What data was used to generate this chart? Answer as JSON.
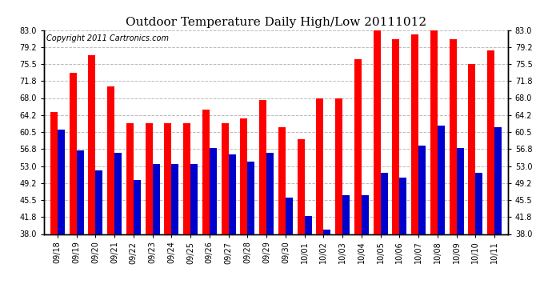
{
  "title": "Outdoor Temperature Daily High/Low 20111012",
  "copyright": "Copyright 2011 Cartronics.com",
  "dates": [
    "09/18",
    "09/19",
    "09/20",
    "09/21",
    "09/22",
    "09/23",
    "09/24",
    "09/25",
    "09/26",
    "09/27",
    "09/28",
    "09/29",
    "09/30",
    "10/01",
    "10/02",
    "10/03",
    "10/04",
    "10/05",
    "10/06",
    "10/07",
    "10/08",
    "10/09",
    "10/10",
    "10/11"
  ],
  "highs": [
    65.0,
    73.5,
    77.5,
    70.5,
    62.5,
    62.5,
    62.5,
    62.5,
    65.5,
    62.5,
    63.5,
    67.5,
    61.5,
    59.0,
    68.0,
    68.0,
    76.5,
    83.0,
    81.0,
    82.0,
    83.0,
    81.0,
    75.5,
    78.5
  ],
  "lows": [
    61.0,
    56.5,
    52.0,
    56.0,
    50.0,
    53.5,
    53.5,
    53.5,
    57.0,
    55.5,
    54.0,
    56.0,
    46.0,
    42.0,
    39.0,
    46.5,
    46.5,
    51.5,
    50.5,
    57.5,
    62.0,
    57.0,
    51.5,
    61.5
  ],
  "high_color": "#ff0000",
  "low_color": "#0000cc",
  "background_color": "#ffffff",
  "plot_background": "#ffffff",
  "yticks": [
    38.0,
    41.8,
    45.5,
    49.2,
    53.0,
    56.8,
    60.5,
    64.2,
    68.0,
    71.8,
    75.5,
    79.2,
    83.0
  ],
  "ymin": 38.0,
  "ymax": 83.0,
  "grid_color": "#bbbbbb",
  "title_fontsize": 11,
  "copyright_fontsize": 7,
  "tick_fontsize": 7,
  "bar_width": 0.38
}
